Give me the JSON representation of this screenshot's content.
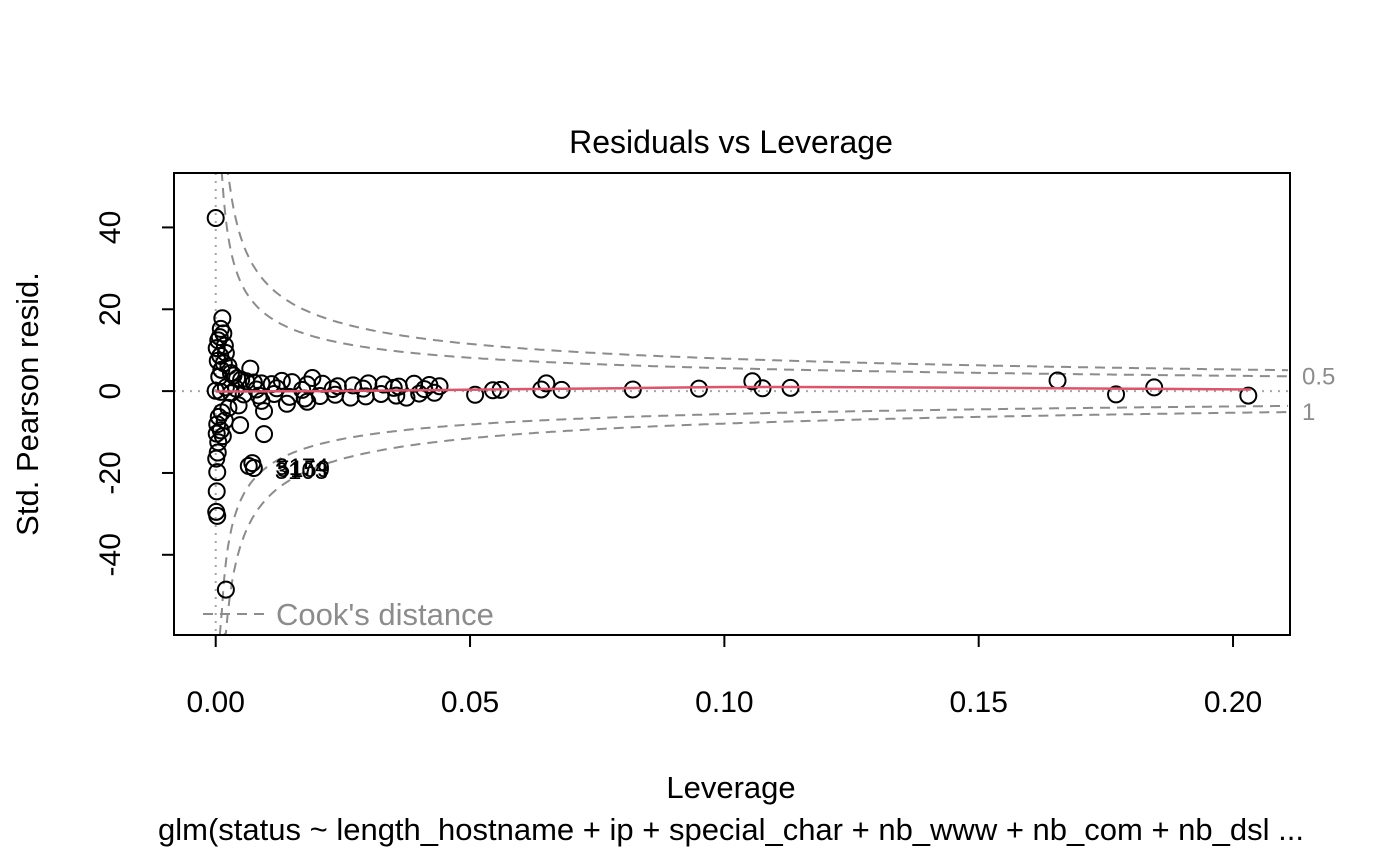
{
  "chart_data": {
    "type": "scatter",
    "title": "Residuals vs Leverage",
    "xlabel": "Leverage",
    "ylabel": "Std. Pearson resid.",
    "subtitle": "glm(status ~ length_hostname + ip + special_char + nb_www + nb_com + nb_dsl ...",
    "xlim": [
      -0.0082,
      0.2112
    ],
    "ylim": [
      -59.6,
      53.3
    ],
    "x_ticks": [
      0.0,
      0.05,
      0.1,
      0.15,
      0.2
    ],
    "x_tick_labels": [
      "0.00",
      "0.05",
      "0.10",
      "0.15",
      "0.20"
    ],
    "y_ticks": [
      -40,
      -20,
      0,
      20,
      40
    ],
    "y_tick_labels": [
      "-40",
      "-20",
      "0",
      "20",
      "40"
    ],
    "legend": {
      "label": "Cook's distance",
      "position": "bottom-left"
    },
    "cook_levels": [
      {
        "level": 0.5,
        "label": "0.5"
      },
      {
        "level": 1,
        "label": "1"
      }
    ],
    "n_params": 7,
    "point_labels": [
      {
        "text": "3174",
        "x": 0.0117,
        "y": -18.5
      },
      {
        "text": "5159",
        "x": 0.012,
        "y": -19.0
      },
      {
        "text": "3103",
        "x": 0.0116,
        "y": -19.5
      }
    ],
    "points": [
      [
        0.0,
        42.3
      ],
      [
        0.0013,
        17.8
      ],
      [
        0.001,
        15.2
      ],
      [
        0.0015,
        14.1
      ],
      [
        0.0008,
        13.2
      ],
      [
        0.0005,
        12.4
      ],
      [
        0.0018,
        11.1
      ],
      [
        0.0002,
        10.5
      ],
      [
        0.002,
        9.3
      ],
      [
        0.0009,
        8.6
      ],
      [
        0.0004,
        7.4
      ],
      [
        0.0016,
        6.8
      ],
      [
        0.0025,
        6.1
      ],
      [
        0.0068,
        5.5
      ],
      [
        0.0011,
        5.2
      ],
      [
        0.003,
        4.4
      ],
      [
        0.0035,
        3.8
      ],
      [
        0.0007,
        3.5
      ],
      [
        0.0042,
        3.1
      ],
      [
        0.005,
        2.8
      ],
      [
        0.006,
        2.4
      ],
      [
        0.0075,
        2.1
      ],
      [
        0.009,
        1.9
      ],
      [
        0.011,
        1.7
      ],
      [
        0.013,
        2.5
      ],
      [
        0.015,
        2.2
      ],
      [
        0.018,
        1.6
      ],
      [
        0.019,
        3.2
      ],
      [
        0.021,
        1.8
      ],
      [
        0.024,
        1.2
      ],
      [
        0.027,
        1.4
      ],
      [
        0.03,
        1.9
      ],
      [
        0.033,
        1.6
      ],
      [
        0.036,
        1.1
      ],
      [
        0.039,
        1.8
      ],
      [
        0.042,
        1.5
      ],
      [
        0.044,
        1.2
      ],
      [
        0.002,
        0.9
      ],
      [
        0.004,
        0.6
      ],
      [
        0.008,
        0.4
      ],
      [
        0.012,
        0.7
      ],
      [
        0.017,
        0.3
      ],
      [
        0.023,
        0.5
      ],
      [
        0.029,
        0.6
      ],
      [
        0.035,
        0.8
      ],
      [
        0.041,
        0.5
      ],
      [
        0.0,
        0.1
      ],
      [
        0.001,
        -0.2
      ],
      [
        0.003,
        -0.5
      ],
      [
        0.0055,
        -0.8
      ],
      [
        0.0085,
        -1.1
      ],
      [
        0.0115,
        -0.7
      ],
      [
        0.0145,
        -1.4
      ],
      [
        0.0175,
        -1.8
      ],
      [
        0.0205,
        -1.2
      ],
      [
        0.0235,
        -0.9
      ],
      [
        0.0265,
        -1.6
      ],
      [
        0.0295,
        -1.3
      ],
      [
        0.0325,
        -0.7
      ],
      [
        0.0355,
        -1.1
      ],
      [
        0.0375,
        -1.6
      ],
      [
        0.04,
        -0.6
      ],
      [
        0.043,
        -0.4
      ],
      [
        0.009,
        -2.4
      ],
      [
        0.014,
        -3.1
      ],
      [
        0.018,
        -2.6
      ],
      [
        0.0095,
        -4.9
      ],
      [
        0.0045,
        -3.5
      ],
      [
        0.0025,
        -4.1
      ],
      [
        0.0012,
        -5.2
      ],
      [
        0.0006,
        -6.3
      ],
      [
        0.0018,
        -7.2
      ],
      [
        0.0003,
        -8.1
      ],
      [
        0.0048,
        -8.3
      ],
      [
        0.001,
        -9.6
      ],
      [
        0.0002,
        -10.4
      ],
      [
        0.0014,
        -11.0
      ],
      [
        0.0005,
        -12.5
      ],
      [
        0.0095,
        -10.5
      ],
      [
        0.0004,
        -15.0
      ],
      [
        0.0001,
        -16.5
      ],
      [
        0.0003,
        -19.8
      ],
      [
        0.0072,
        -17.6
      ],
      [
        0.0065,
        -18.3
      ],
      [
        0.0075,
        -18.8
      ],
      [
        0.0002,
        -24.5
      ],
      [
        0.0001,
        -29.5
      ],
      [
        0.0003,
        -30.5
      ],
      [
        0.002,
        -48.5
      ],
      [
        0.051,
        -0.9
      ],
      [
        0.0545,
        0.2
      ],
      [
        0.056,
        0.3
      ],
      [
        0.064,
        0.4
      ],
      [
        0.065,
        1.9
      ],
      [
        0.068,
        0.3
      ],
      [
        0.082,
        0.4
      ],
      [
        0.095,
        0.6
      ],
      [
        0.1055,
        2.4
      ],
      [
        0.1075,
        0.7
      ],
      [
        0.113,
        0.8
      ],
      [
        0.1655,
        2.6
      ],
      [
        0.177,
        -0.8
      ],
      [
        0.1845,
        0.9
      ],
      [
        0.203,
        -1.1
      ]
    ],
    "smooth": [
      [
        0.0,
        -0.1
      ],
      [
        0.005,
        -0.1
      ],
      [
        0.02,
        0.0
      ],
      [
        0.04,
        0.2
      ],
      [
        0.06,
        0.5
      ],
      [
        0.08,
        0.7
      ],
      [
        0.1,
        1.0
      ],
      [
        0.113,
        1.0
      ],
      [
        0.15,
        0.8
      ],
      [
        0.18,
        0.6
      ],
      [
        0.2035,
        0.4
      ]
    ],
    "colors": {
      "smooth": "#df536b",
      "cook": "#8c8c8c",
      "reference": "#a6a6a6",
      "points": "#000000"
    }
  }
}
